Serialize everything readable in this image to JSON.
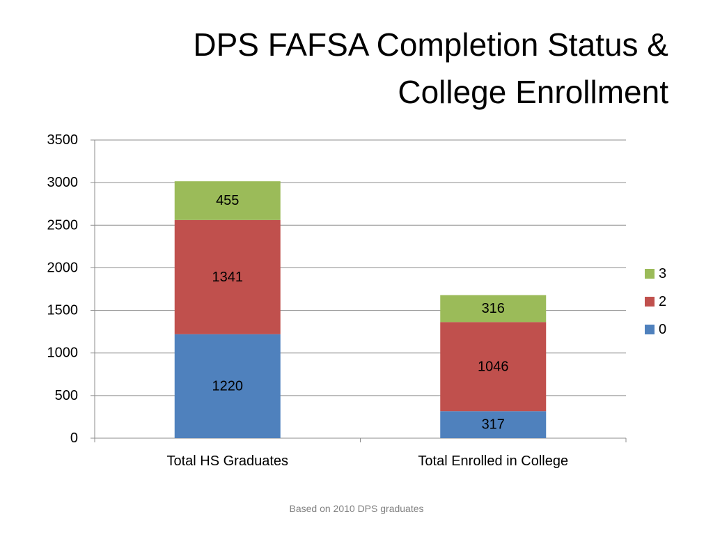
{
  "slide": {
    "title_line1": "DPS FAFSA Completion Status &",
    "title_line2": "College Enrollment",
    "footnote": "Based on 2010 DPS graduates"
  },
  "chart_data": {
    "type": "bar",
    "stacked": true,
    "categories": [
      "Total HS Graduates",
      "Total Enrolled in College"
    ],
    "series": [
      {
        "name": "0",
        "values": [
          1220,
          317
        ],
        "color": "#4F81BD"
      },
      {
        "name": "2",
        "values": [
          1341,
          1046
        ],
        "color": "#C0504D"
      },
      {
        "name": "3",
        "values": [
          455,
          316
        ],
        "color": "#9BBB59"
      }
    ],
    "ylim": [
      0,
      3500
    ],
    "yticks": [
      0,
      500,
      1000,
      1500,
      2000,
      2500,
      3000,
      3500
    ],
    "grid": true,
    "legend": "right",
    "legend_order": [
      "3",
      "2",
      "0"
    ],
    "data_labels": true
  }
}
